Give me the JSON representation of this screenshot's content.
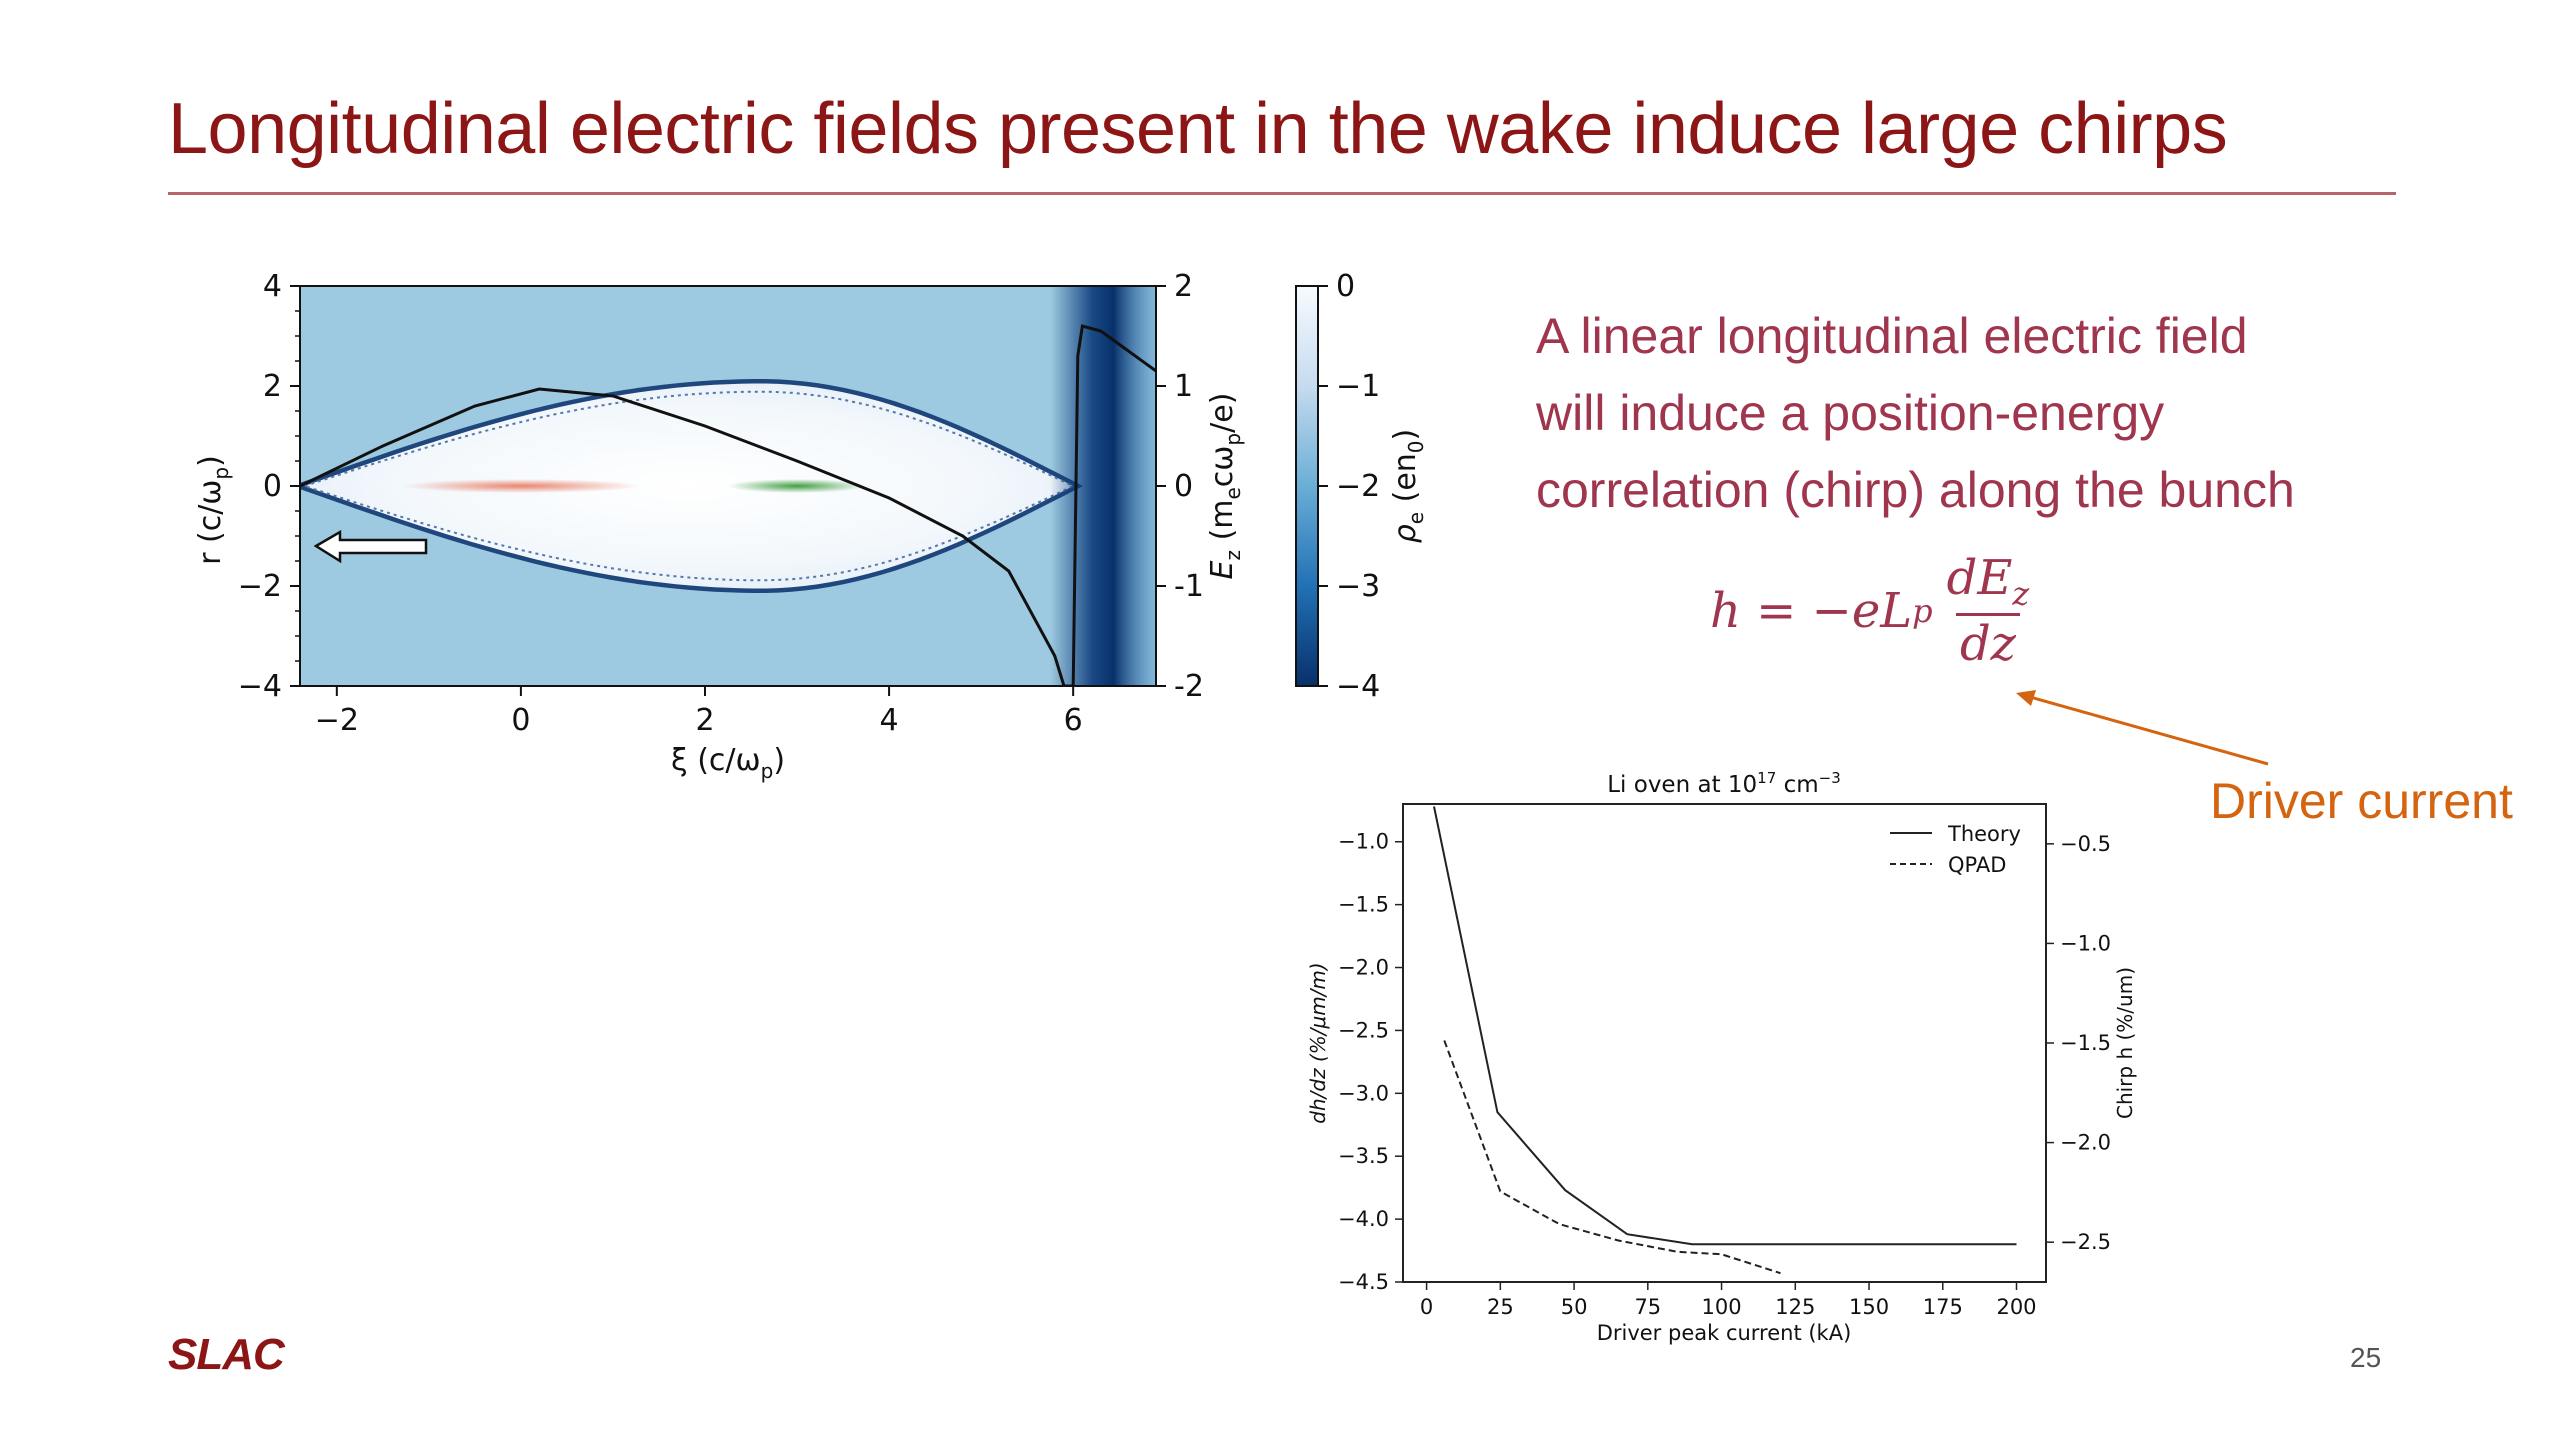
{
  "slide": {
    "title": "Longitudinal electric fields present in the wake induce large chirps",
    "page_number": "25",
    "logo_text": "SLAC",
    "text_lines": [
      "A linear longitudinal electric field",
      "will induce a position-energy",
      "correlation (chirp) along the bunch"
    ],
    "formula": {
      "lhs": "h = −eL",
      "lhs_sub": "p",
      "num": "dE",
      "num_sub": "z",
      "den": "dz"
    },
    "annotation": "Driver current",
    "colors": {
      "title": "#8c1515",
      "body_text": "#a0354e",
      "annotation": "#d4640f",
      "logo": "#8c1515"
    }
  },
  "chart_data": [
    {
      "type": "heatmap",
      "description_of_axes": {
        "xlabel": "ξ (c/ω",
        "xlabel_sub": "p",
        "ylabel": "r (c/ω",
        "ylabel_sub": "p",
        "y2label": "E",
        "y2label_sub": "z",
        "y2label_rest": " (m",
        "y2label_sub2": "e",
        "y2label_rest2": "cω",
        "y2label_sub3": "p",
        "y2label_rest3": "/e)",
        "colorbar_label": "ρ",
        "colorbar_sub": "e",
        "colorbar_rest": " (en",
        "colorbar_sub2": "0",
        "colorbar_rest2": ")"
      },
      "xlim": [
        -2.4,
        6.9
      ],
      "ylim": [
        -4,
        4
      ],
      "y2lim": [
        -2,
        2
      ],
      "clim": [
        -4,
        0
      ],
      "xticks": [
        "−2",
        "0",
        "2",
        "4",
        "6"
      ],
      "xtick_values": [
        -2,
        0,
        2,
        4,
        6
      ],
      "yticks": [
        "4",
        "2",
        "0",
        "−2",
        "−4"
      ],
      "ytick_values": [
        4,
        2,
        0,
        -2,
        -4
      ],
      "y2ticks": [
        "2",
        "1",
        "0",
        "-1",
        "-2"
      ],
      "y2tick_values": [
        2,
        1,
        0,
        -1,
        -2
      ],
      "cticks": [
        "0",
        "−1",
        "−2",
        "−3",
        "−4"
      ],
      "ctick_values": [
        0,
        -1,
        -2,
        -3,
        -4
      ],
      "colormap": "Blues_r",
      "drive_beam_center_xi": 0,
      "witness_beam_center_xi": 3,
      "drive_beam_color": "#e8806a",
      "witness_beam_color": "#3a9a3a",
      "Ez_curve": {
        "xi": [
          -2.4,
          -1.5,
          -0.5,
          0.2,
          1.0,
          2.0,
          3.0,
          4.0,
          4.8,
          5.3,
          5.8,
          5.9,
          6.0,
          6.05,
          6.1,
          6.3,
          6.6,
          6.9
        ],
        "Ez": [
          0.0,
          0.4,
          0.8,
          0.97,
          0.9,
          0.6,
          0.25,
          -0.12,
          -0.5,
          -0.85,
          -1.7,
          -2.0,
          -2.0,
          1.3,
          1.6,
          1.55,
          1.35,
          1.15
        ]
      }
    },
    {
      "type": "line",
      "title": "Li oven at 10",
      "title_sup": "17",
      "title_rest": " cm",
      "title_sup2": "−3",
      "xlabel": "Driver peak current (kA)",
      "ylabel": "dh/dz (%/μm/m)",
      "y2label": "Chirp h (%/um)",
      "xlim": [
        -8,
        210
      ],
      "ylim": [
        -4.5,
        -0.7
      ],
      "y2lim": [
        -2.7,
        -0.3
      ],
      "xticks": [
        "0",
        "25",
        "50",
        "75",
        "100",
        "125",
        "150",
        "175",
        "200"
      ],
      "xtick_values": [
        0,
        25,
        50,
        75,
        100,
        125,
        150,
        175,
        200
      ],
      "yticks": [
        "−1.0",
        "−1.5",
        "−2.0",
        "−2.5",
        "−3.0",
        "−3.5",
        "−4.0",
        "−4.5"
      ],
      "ytick_values": [
        -1.0,
        -1.5,
        -2.0,
        -2.5,
        -3.0,
        -3.5,
        -4.0,
        -4.5
      ],
      "y2ticks": [
        "−0.5",
        "−1.0",
        "−1.5",
        "−2.0",
        "−2.5"
      ],
      "y2tick_values": [
        -0.5,
        -1.0,
        -1.5,
        -2.0,
        -2.5
      ],
      "legend_position": "top-right",
      "series": [
        {
          "name": "Theory",
          "style": "solid",
          "x": [
            2.5,
            24,
            47,
            68,
            90,
            110,
            130,
            150,
            175,
            200
          ],
          "y": [
            -0.72,
            -3.15,
            -3.77,
            -4.12,
            -4.2,
            -4.2,
            -4.2,
            -4.2,
            -4.2,
            -4.2
          ]
        },
        {
          "name": "QPAD",
          "style": "dashed",
          "x": [
            6,
            25,
            45,
            65,
            85,
            100,
            120
          ],
          "y": [
            -2.58,
            -3.78,
            -4.04,
            -4.17,
            -4.26,
            -4.28,
            -4.43
          ]
        }
      ]
    }
  ]
}
